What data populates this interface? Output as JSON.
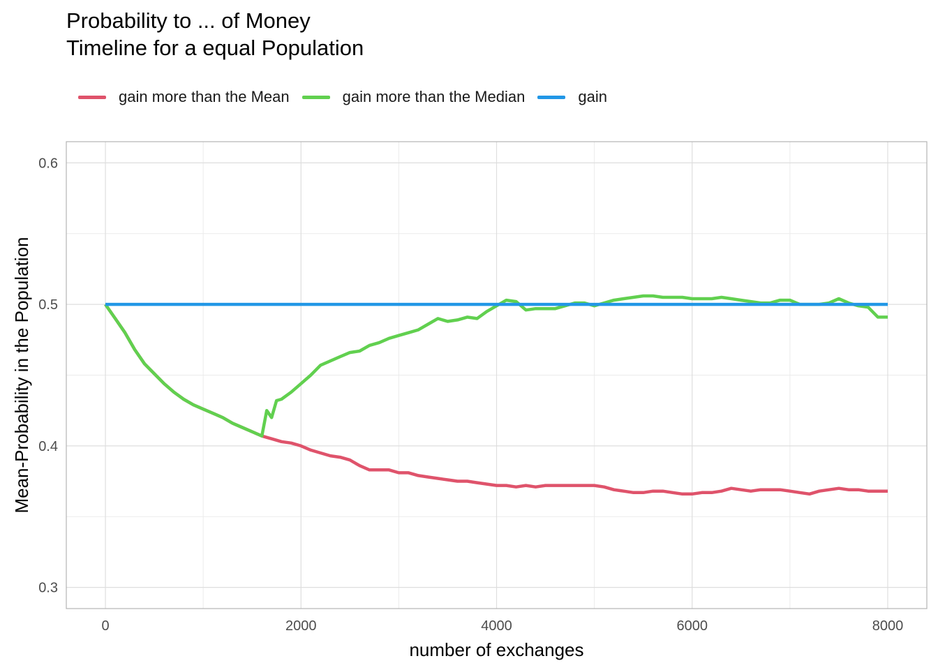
{
  "chart_data": {
    "type": "line",
    "title_line1": "Probability to ... of Money",
    "title_line2": "Timeline for a equal Population",
    "xlabel": "number of exchanges",
    "ylabel": "Mean-Probability in the Population",
    "xlim": [
      -400,
      8400
    ],
    "ylim": [
      0.285,
      0.615
    ],
    "x_ticks": [
      0,
      2000,
      4000,
      6000,
      8000
    ],
    "x_tick_labels": [
      "0",
      "2000",
      "4000",
      "6000",
      "8000"
    ],
    "y_ticks": [
      0.3,
      0.4,
      0.5,
      0.6
    ],
    "y_tick_labels": [
      "0.3",
      "0.4",
      "0.5",
      "0.6"
    ],
    "y_minor_ticks": [
      0.35,
      0.45,
      0.55
    ],
    "x_minor_ticks": [
      1000,
      3000,
      5000,
      7000
    ],
    "grid": true,
    "legend_position": "top",
    "series": [
      {
        "name": "gain more than the Mean",
        "color": "#DF536B",
        "x": [
          0,
          100,
          200,
          300,
          400,
          500,
          600,
          700,
          800,
          900,
          1000,
          1100,
          1200,
          1300,
          1400,
          1500,
          1600,
          1700,
          1800,
          1900,
          2000,
          2100,
          2200,
          2300,
          2400,
          2500,
          2600,
          2700,
          2800,
          2900,
          3000,
          3100,
          3200,
          3300,
          3400,
          3500,
          3600,
          3700,
          3800,
          3900,
          4000,
          4100,
          4200,
          4300,
          4400,
          4500,
          4600,
          4700,
          4800,
          4900,
          5000,
          5100,
          5200,
          5300,
          5400,
          5500,
          5600,
          5700,
          5800,
          5900,
          6000,
          6100,
          6200,
          6300,
          6400,
          6500,
          6600,
          6700,
          6800,
          6900,
          7000,
          7100,
          7200,
          7300,
          7400,
          7500,
          7600,
          7700,
          7800,
          7900,
          8000
        ],
        "values": [
          0.5,
          0.49,
          0.48,
          0.468,
          0.458,
          0.451,
          0.444,
          0.438,
          0.433,
          0.429,
          0.426,
          0.423,
          0.42,
          0.416,
          0.413,
          0.41,
          0.407,
          0.405,
          0.403,
          0.402,
          0.4,
          0.397,
          0.395,
          0.393,
          0.392,
          0.39,
          0.386,
          0.383,
          0.383,
          0.383,
          0.381,
          0.381,
          0.379,
          0.378,
          0.377,
          0.376,
          0.375,
          0.375,
          0.374,
          0.373,
          0.372,
          0.372,
          0.371,
          0.372,
          0.371,
          0.372,
          0.372,
          0.372,
          0.372,
          0.372,
          0.372,
          0.371,
          0.369,
          0.368,
          0.367,
          0.367,
          0.368,
          0.368,
          0.367,
          0.366,
          0.366,
          0.367,
          0.367,
          0.368,
          0.37,
          0.369,
          0.368,
          0.369,
          0.369,
          0.369,
          0.368,
          0.367,
          0.366,
          0.368,
          0.369,
          0.37,
          0.369,
          0.369,
          0.368,
          0.368,
          0.368
        ]
      },
      {
        "name": "gain more than the Median",
        "color": "#61D04F",
        "x": [
          0,
          100,
          200,
          300,
          400,
          500,
          600,
          700,
          800,
          900,
          1000,
          1100,
          1200,
          1300,
          1400,
          1500,
          1600,
          1650,
          1700,
          1750,
          1800,
          1900,
          2000,
          2100,
          2200,
          2300,
          2400,
          2500,
          2600,
          2700,
          2800,
          2900,
          3000,
          3100,
          3200,
          3300,
          3400,
          3500,
          3600,
          3700,
          3800,
          3900,
          4000,
          4100,
          4200,
          4300,
          4400,
          4500,
          4600,
          4700,
          4800,
          4900,
          5000,
          5100,
          5200,
          5300,
          5400,
          5500,
          5600,
          5700,
          5800,
          5900,
          6000,
          6100,
          6200,
          6300,
          6400,
          6500,
          6600,
          6700,
          6800,
          6900,
          7000,
          7100,
          7200,
          7300,
          7400,
          7500,
          7600,
          7700,
          7800,
          7900,
          8000
        ],
        "values": [
          0.5,
          0.49,
          0.48,
          0.468,
          0.458,
          0.451,
          0.444,
          0.438,
          0.433,
          0.429,
          0.426,
          0.423,
          0.42,
          0.416,
          0.413,
          0.41,
          0.407,
          0.425,
          0.42,
          0.432,
          0.433,
          0.438,
          0.444,
          0.45,
          0.457,
          0.46,
          0.463,
          0.466,
          0.467,
          0.471,
          0.473,
          0.476,
          0.478,
          0.48,
          0.482,
          0.486,
          0.49,
          0.488,
          0.489,
          0.491,
          0.49,
          0.495,
          0.499,
          0.503,
          0.502,
          0.496,
          0.497,
          0.497,
          0.497,
          0.499,
          0.501,
          0.501,
          0.499,
          0.501,
          0.503,
          0.504,
          0.505,
          0.506,
          0.506,
          0.505,
          0.505,
          0.505,
          0.504,
          0.504,
          0.504,
          0.505,
          0.504,
          0.503,
          0.502,
          0.501,
          0.501,
          0.503,
          0.503,
          0.5,
          0.5,
          0.5,
          0.501,
          0.504,
          0.501,
          0.499,
          0.498,
          0.491,
          0.491
        ]
      },
      {
        "name": "gain",
        "color": "#2297E6",
        "x": [
          0,
          8000
        ],
        "values": [
          0.5,
          0.5
        ]
      }
    ]
  }
}
